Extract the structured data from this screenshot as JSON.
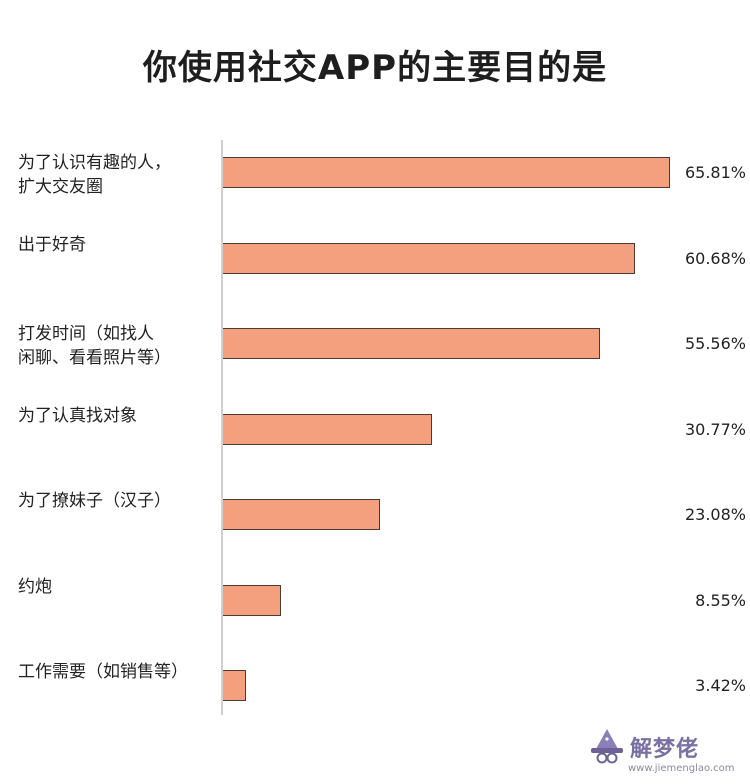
{
  "chart_data": {
    "type": "bar",
    "orientation": "horizontal",
    "title": "你使用社交APP的主要目的是",
    "categories": [
      "为了认识有趣的人，扩大交友圈",
      "出于好奇",
      "打发时间（如找人闲聊、看看照片等）",
      "为了认真找对象",
      "为了撩妹子（汉子）",
      "约炮",
      "工作需要（如销售等）"
    ],
    "category_lines": [
      [
        "为了认识有趣的人，",
        "扩大交友圈"
      ],
      [
        "出于好奇"
      ],
      [
        "打发时间（如找人",
        "闲聊、看看照片等）"
      ],
      [
        "为了认真找对象"
      ],
      [
        "为了撩妹子（汉子）"
      ],
      [
        "约炮"
      ],
      [
        "工作需要（如销售等）"
      ]
    ],
    "values": [
      65.81,
      60.68,
      55.56,
      30.77,
      23.08,
      8.55,
      3.42
    ],
    "value_labels": [
      "65.81%",
      "60.68%",
      "55.56%",
      "30.77%",
      "23.08%",
      "8.55%",
      "3.42%"
    ],
    "xlim": [
      0,
      65.81
    ],
    "grid": false,
    "colors": {
      "bar_fill": "#f4a07f",
      "bar_outline": "#4a3b34"
    }
  },
  "watermark": {
    "name": "解梦佬",
    "url": "www.jiemenglao.com",
    "icon": "wizard-hat-logo-icon"
  }
}
